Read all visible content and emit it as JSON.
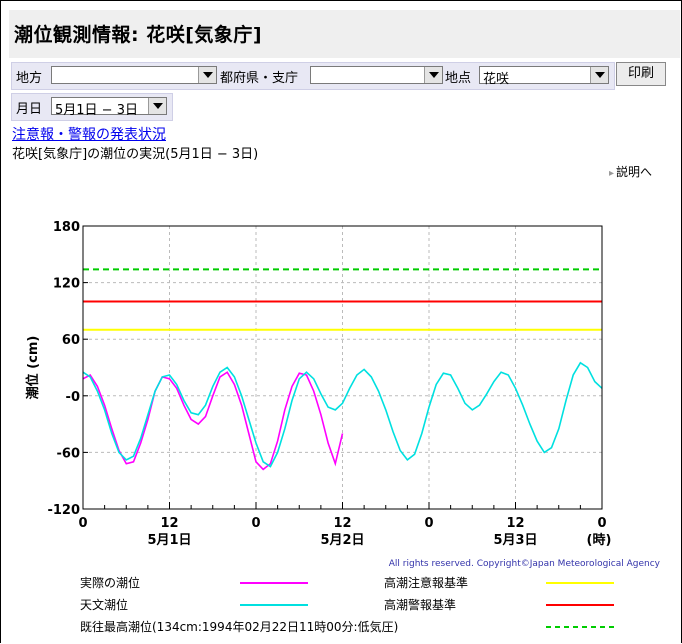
{
  "header": {
    "title": "潮位観測情報: 花咲[気象庁]"
  },
  "filters": {
    "region_label": "地方",
    "region_value": "",
    "pref_label": "都府県・支庁",
    "pref_value": "",
    "station_label": "地点",
    "station_value": "花咲",
    "print_label": "印刷",
    "date_label": "月日",
    "date_value": "5月1日 − 3日"
  },
  "links": {
    "warning_status": "注意報・警報の発表状況",
    "help": "説明へ"
  },
  "status_text": "花咲[気象庁]の潮位の実況(5月1日 − 3日)",
  "copyright": "All rights reserved. Copyright©Japan Meteorological Agency",
  "colors": {
    "observed": "#ff00ff",
    "astro": "#00e0e0",
    "caution": "#ffff00",
    "warning": "#ff0000",
    "record": "#00cc00"
  },
  "chart_data": {
    "type": "line",
    "ylabel": "潮位 (cm)",
    "yticks": [
      "180",
      "120",
      "60",
      "-0",
      "-60",
      "-120"
    ],
    "ylim": [
      -120,
      180
    ],
    "xlim": [
      0,
      72
    ],
    "x_ticks": [
      {
        "x": 0,
        "label": "0"
      },
      {
        "x": 12,
        "label": "12"
      },
      {
        "x": 24,
        "label": "0"
      },
      {
        "x": 36,
        "label": "12"
      },
      {
        "x": 48,
        "label": "0"
      },
      {
        "x": 60,
        "label": "12"
      },
      {
        "x": 72,
        "label": "0"
      }
    ],
    "date_labels": [
      {
        "x": 12,
        "label": "5月1日"
      },
      {
        "x": 36,
        "label": "5月2日"
      },
      {
        "x": 60,
        "label": "5月3日"
      }
    ],
    "x_unit": "(時)",
    "grid": true,
    "thresholds": [
      {
        "name": "高潮注意報基準",
        "value": 70,
        "color": "#ffff00"
      },
      {
        "name": "高潮警報基準",
        "value": 100,
        "color": "#ff0000"
      },
      {
        "name": "既往最高潮位(134cm:1994年02月22日11時00分:低気圧)",
        "value": 134,
        "color": "#00cc00"
      }
    ],
    "series": [
      {
        "name": "実際の潮位",
        "color": "#ff00ff",
        "x": [
          0,
          1,
          2,
          3,
          4,
          5,
          6,
          7,
          8,
          9,
          10,
          11,
          12,
          13,
          14,
          15,
          16,
          17,
          18,
          19,
          20,
          21,
          22,
          23,
          24,
          25,
          26,
          27,
          28,
          29,
          30,
          31,
          32,
          33,
          34,
          35,
          36
        ],
        "y": [
          18,
          22,
          10,
          -10,
          -35,
          -58,
          -72,
          -70,
          -50,
          -25,
          5,
          20,
          18,
          8,
          -10,
          -25,
          -30,
          -22,
          0,
          20,
          25,
          12,
          -10,
          -40,
          -70,
          -78,
          -72,
          -48,
          -15,
          10,
          24,
          22,
          5,
          -20,
          -50,
          -72,
          -40
        ]
      },
      {
        "name": "天文潮位",
        "color": "#00e0e0",
        "x": [
          0,
          1,
          2,
          3,
          4,
          5,
          6,
          7,
          8,
          9,
          10,
          11,
          12,
          13,
          14,
          15,
          16,
          17,
          18,
          19,
          20,
          21,
          22,
          23,
          24,
          25,
          26,
          27,
          28,
          29,
          30,
          31,
          32,
          33,
          34,
          35,
          36,
          37,
          38,
          39,
          40,
          41,
          42,
          43,
          44,
          45,
          46,
          47,
          48,
          49,
          50,
          51,
          52,
          53,
          54,
          55,
          56,
          57,
          58,
          59,
          60,
          61,
          62,
          63,
          64,
          65,
          66,
          67,
          68,
          69,
          70,
          71,
          72
        ],
        "y": [
          25,
          20,
          5,
          -15,
          -40,
          -60,
          -68,
          -64,
          -45,
          -20,
          5,
          20,
          22,
          12,
          -5,
          -18,
          -20,
          -10,
          10,
          25,
          30,
          20,
          0,
          -25,
          -50,
          -70,
          -75,
          -60,
          -35,
          -5,
          18,
          25,
          18,
          2,
          -12,
          -15,
          -8,
          8,
          22,
          28,
          20,
          5,
          -15,
          -38,
          -58,
          -68,
          -62,
          -40,
          -12,
          12,
          24,
          22,
          8,
          -8,
          -15,
          -10,
          2,
          15,
          25,
          22,
          8,
          -10,
          -30,
          -48,
          -60,
          -55,
          -35,
          -5,
          22,
          35,
          30,
          15,
          8
        ]
      }
    ],
    "legend": [
      {
        "label": "実際の潮位",
        "color": "#ff00ff",
        "style": "solid"
      },
      {
        "label": "高潮注意報基準",
        "color": "#ffff00",
        "style": "solid"
      },
      {
        "label": "天文潮位",
        "color": "#00e0e0",
        "style": "solid"
      },
      {
        "label": "高潮警報基準",
        "color": "#ff0000",
        "style": "solid"
      },
      {
        "label": "既往最高潮位(134cm:1994年02月22日11時00分:低気圧)",
        "color": "#00cc00",
        "style": "dashed"
      }
    ]
  }
}
